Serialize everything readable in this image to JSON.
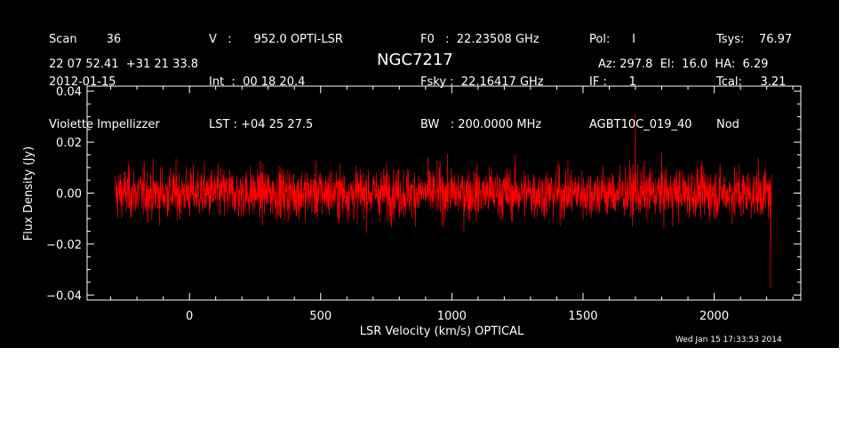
{
  "header": {
    "col1": [
      "Scan        36",
      "2012-01-15",
      "Violette Impellizzer"
    ],
    "col2": [
      "V   :      952.0 OPTI-LSR",
      "Int  :  00 18 20.4",
      "LST : +04 25 27.5"
    ],
    "col3": [
      "F0   :  22.23508 GHz",
      "Fsky :  22.16417 GHz",
      "BW   : 200.0000 MHz"
    ],
    "col4": [
      "Pol:      I",
      "IF :      1",
      "AGBT10C_019_40"
    ],
    "col5": [
      "Tsys:    76.97",
      "Tcal:     3.21",
      "Nod"
    ],
    "coords": "22 07 52.41  +31 21 33.8",
    "right_info": "Az: 297.8  El:  16.0  HA:  6.29"
  },
  "timestamp": "Wed Jan 15 17:33:53 2014",
  "colors": {
    "background": "#000000",
    "axes": "#ffffff",
    "trace": "#ff0000"
  },
  "chart_data": {
    "type": "line",
    "title": "NGC7217",
    "xlabel": "LSR Velocity (km/s) OPTICAL",
    "ylabel": "Flux Density (Jy)",
    "xlim": [
      -390,
      2330
    ],
    "ylim": [
      -0.042,
      0.042
    ],
    "xticks": [
      0,
      500,
      1000,
      1500,
      2000
    ],
    "yticks": [
      -0.04,
      -0.02,
      0.0,
      0.02,
      0.04
    ],
    "ytick_labels": [
      "−0.04",
      "−0.02",
      "0.00",
      "0.02",
      "0.04"
    ],
    "series": [
      {
        "color": "#ff0000",
        "noise_rms": 0.009,
        "x": [
          -283,
          2218
        ],
        "y_envelope_note": "noise-like spectrum centered on 0 Jy, range approx -0.037 to 0.031 Jy"
      }
    ]
  }
}
